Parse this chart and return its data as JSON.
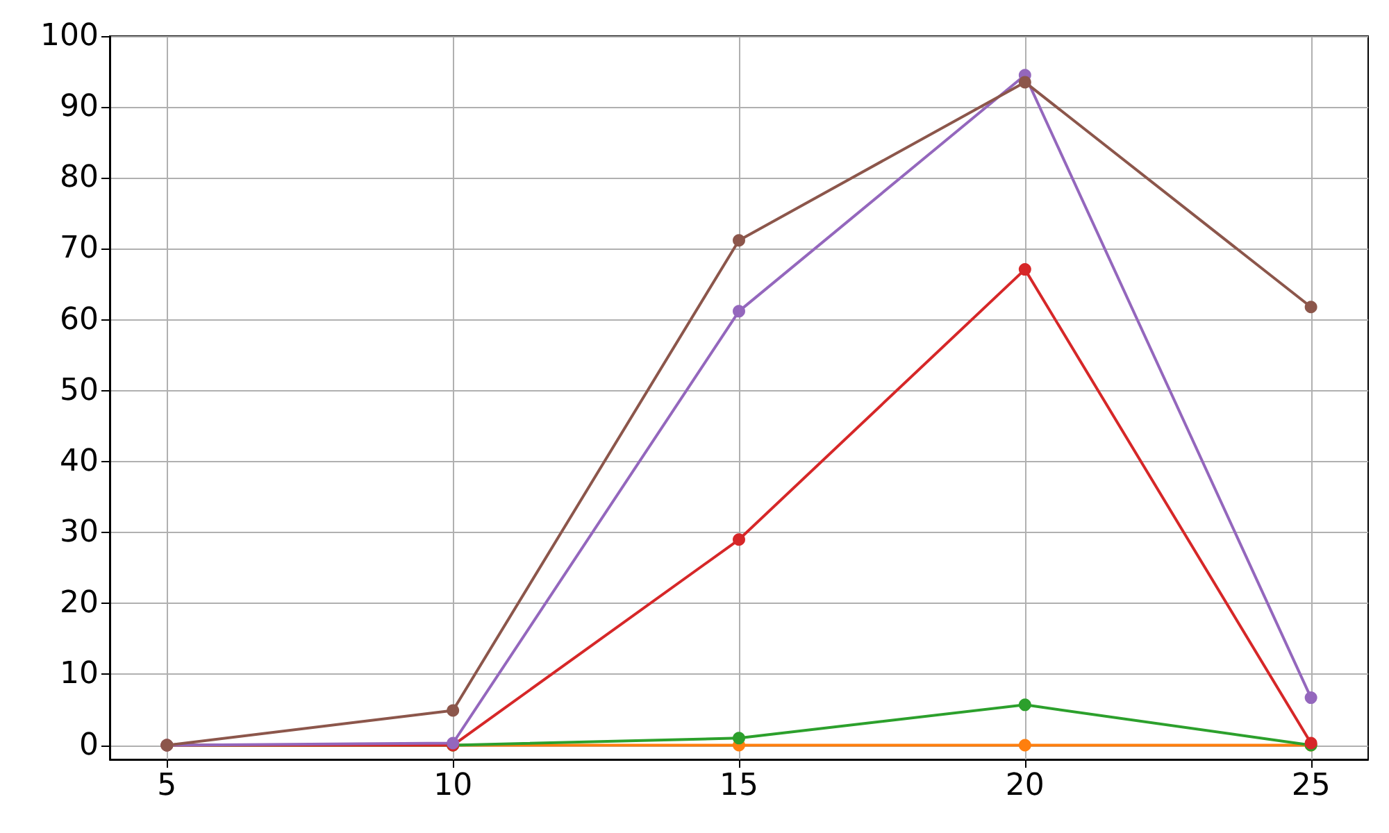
{
  "chart_data": {
    "type": "line",
    "x": [
      5,
      10,
      15,
      20,
      25
    ],
    "series": [
      {
        "color": "#ff7f0e",
        "values": [
          0,
          0,
          0,
          0,
          0
        ]
      },
      {
        "color": "#2ca02c",
        "values": [
          0,
          0,
          1.0,
          5.7,
          0
        ]
      },
      {
        "color": "#d62728",
        "values": [
          0,
          0,
          29.0,
          67.1,
          0.3
        ]
      },
      {
        "color": "#9467bd",
        "values": [
          0,
          0.3,
          61.2,
          94.5,
          6.7
        ]
      },
      {
        "color": "#8c564b",
        "values": [
          0,
          4.9,
          71.2,
          93.5,
          61.8
        ]
      }
    ],
    "xlim": [
      4,
      26
    ],
    "xticks": [
      5,
      10,
      15,
      20,
      25
    ],
    "ylim": [
      -2,
      100
    ],
    "yticks": [
      0,
      10,
      20,
      30,
      40,
      50,
      60,
      70,
      80,
      90,
      100
    ],
    "grid": true,
    "marker": "circle",
    "line_style": "solid"
  }
}
